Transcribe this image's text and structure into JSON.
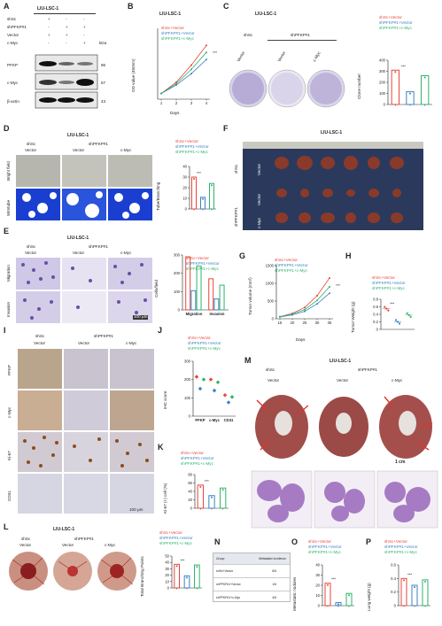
{
  "cell_line": "LIU-LSC-1",
  "panel_letters": [
    "A",
    "B",
    "C",
    "D",
    "E",
    "F",
    "G",
    "H",
    "I",
    "J",
    "K",
    "L",
    "M",
    "N",
    "O",
    "P"
  ],
  "groups": {
    "shsc": "shSc",
    "shpfkp": "shPFKP#1",
    "vector": "Vector",
    "cmyc": "c-Myc"
  },
  "legend": [
    "shSc+Vector",
    "shPFKP#1+Vector",
    "shPFKP#1+c-Myc"
  ],
  "colors": {
    "red": "#e8463a",
    "blue": "#3b82c4",
    "green": "#2fb36a"
  },
  "panelA": {
    "rows": [
      "shSc",
      "shPFKP#1",
      "Vector",
      "c-Myc"
    ],
    "signs": [
      [
        "+",
        "-",
        "-"
      ],
      [
        "-",
        "+",
        "+"
      ],
      [
        "+",
        "+",
        "-"
      ],
      [
        "-",
        "-",
        "+"
      ]
    ],
    "kda": "kDa",
    "bands": [
      {
        "name": "PFKP",
        "kda": "86"
      },
      {
        "name": "c-Myc",
        "kda": "57"
      },
      {
        "name": "β-actin",
        "kda": "43"
      }
    ]
  },
  "panelB": {
    "ylabel": "OD value (450nm)",
    "xlabel": "Days",
    "sig": "***"
  },
  "panelC": {
    "ylabel": "Clone number",
    "sig": "***"
  },
  "panelD": {
    "rows": [
      "Bright field",
      "Wimtube"
    ],
    "ylabel": "Tube/Branching",
    "sig": "***"
  },
  "panelE": {
    "rows": [
      "Migration",
      "Invasion"
    ],
    "ylabel": "Cells/field",
    "scale": "100 μm",
    "sig": "***"
  },
  "panelF": {
    "rows": [
      "shSc",
      "Vector",
      "shPFKP#1",
      "Vector",
      "c-Myc"
    ]
  },
  "panelG": {
    "ylabel": "Tumor volume (mm³)",
    "xlabel": "Days",
    "sig": "***"
  },
  "panelH": {
    "ylabel": "Tumor Weight (g)",
    "sig": "***"
  },
  "panelI": {
    "rows": [
      "PFKP",
      "c-Myc",
      "Ki-67",
      "CD31"
    ],
    "scale": "100 μm"
  },
  "panelJ": {
    "ylabel": "IHC score",
    "sig": "***"
  },
  "panelK": {
    "ylabel": "Ki-67 (+) cell (%)",
    "sig": "***"
  },
  "panelL": {
    "ylabel": "Total Branching Points",
    "sig": "***"
  },
  "panelM": {
    "scale": "1 cm"
  },
  "panelN": {
    "headers": [
      "Group",
      "Metastatic incidence"
    ],
    "rows": [
      [
        "shSc+Vector",
        "6/6"
      ],
      [
        "shPFKP#1+Vector",
        "1/6"
      ],
      [
        "shPFKP#1+c-Myc",
        "4/6"
      ]
    ]
  },
  "panelO": {
    "ylabel": "Metastatic nodules",
    "sig": "***"
  },
  "panelP": {
    "ylabel": "Lung weight (g)",
    "sig": "***"
  },
  "chart_data": [
    {
      "panel": "B",
      "type": "line",
      "x": [
        1,
        2,
        3,
        4
      ],
      "xlabel": "Days",
      "ylabel": "OD value (450nm)",
      "ylim": [
        0,
        2.5
      ],
      "series": [
        {
          "name": "shSc+Vector",
          "values": [
            0.2,
            0.6,
            1.2,
            1.9
          ]
        },
        {
          "name": "shPFKP#1+Vector",
          "values": [
            0.2,
            0.5,
            0.9,
            1.4
          ]
        },
        {
          "name": "shPFKP#1+c-Myc",
          "values": [
            0.2,
            0.55,
            1.05,
            1.65
          ]
        }
      ]
    },
    {
      "panel": "C",
      "type": "bar",
      "categories": [
        "shSc+Vector",
        "shPFKP#1+Vector",
        "shPFKP#1+c-Myc"
      ],
      "values": [
        310,
        115,
        260
      ],
      "ylabel": "Clone number",
      "ylim": [
        0,
        400
      ],
      "ticks": [
        0,
        100,
        200,
        300,
        400
      ]
    },
    {
      "panel": "D",
      "type": "bar",
      "categories": [
        "shSc+Vector",
        "shPFKP#1+Vector",
        "shPFKP#1+c-Myc"
      ],
      "values": [
        30,
        11,
        24
      ],
      "ylabel": "Tube/Branching",
      "ylim": [
        0,
        40
      ],
      "ticks": [
        0,
        10,
        20,
        30,
        40
      ]
    },
    {
      "panel": "E",
      "type": "bar",
      "categories": [
        "Migration",
        "Invasion"
      ],
      "ylabel": "Cells/field",
      "ylim": [
        0,
        300
      ],
      "ticks": [
        0,
        100,
        200,
        300
      ],
      "series": [
        {
          "name": "shSc+Vector",
          "values": [
            290,
            170
          ]
        },
        {
          "name": "shPFKP#1+Vector",
          "values": [
            105,
            60
          ]
        },
        {
          "name": "shPFKP#1+c-Myc",
          "values": [
            240,
            135
          ]
        }
      ]
    },
    {
      "panel": "G",
      "type": "line",
      "x": [
        15,
        20,
        25,
        30,
        35
      ],
      "xlabel": "Days",
      "ylabel": "Tumor volume (mm³)",
      "ylim": [
        0,
        1500
      ],
      "ticks": [
        0,
        500,
        1000,
        1500
      ],
      "series": [
        {
          "name": "shSc+Vector",
          "values": [
            60,
            150,
            320,
            650,
            1150
          ]
        },
        {
          "name": "shPFKP#1+Vector",
          "values": [
            50,
            110,
            210,
            420,
            720
          ]
        },
        {
          "name": "shPFKP#1+c-Myc",
          "values": [
            55,
            130,
            260,
            520,
            900
          ]
        }
      ]
    },
    {
      "panel": "H",
      "type": "scatter",
      "categories": [
        "shSc+Vector",
        "shPFKP#1+Vector",
        "shPFKP#1+c-Myc"
      ],
      "values": [
        0.55,
        0.2,
        0.38
      ],
      "ylabel": "Tumor Weight (g)",
      "ylim": [
        0,
        0.8
      ],
      "ticks": [
        0,
        0.2,
        0.4,
        0.6,
        0.8
      ]
    },
    {
      "panel": "J",
      "type": "scatter",
      "categories": [
        "PFKP",
        "c-Myc",
        "CD31"
      ],
      "ylabel": "IHC score",
      "ylim": [
        0,
        300
      ],
      "ticks": [
        0,
        100,
        200,
        300
      ],
      "series": [
        {
          "name": "shSc+Vector",
          "values": [
            215,
            200,
            115
          ]
        },
        {
          "name": "shPFKP#1+Vector",
          "values": [
            150,
            140,
            75
          ]
        },
        {
          "name": "shPFKP#1+c-Myc",
          "values": [
            200,
            185,
            105
          ]
        }
      ]
    },
    {
      "panel": "K",
      "type": "bar",
      "categories": [
        "shSc+Vector",
        "shPFKP#1+Vector",
        "shPFKP#1+c-Myc"
      ],
      "values": [
        55,
        30,
        48
      ],
      "ylabel": "Ki-67 (+) cell (%)",
      "ylim": [
        0,
        80
      ],
      "ticks": [
        0,
        20,
        40,
        60,
        80
      ]
    },
    {
      "panel": "L",
      "type": "bar",
      "categories": [
        "shSc+Vector",
        "shPFKP#1+Vector",
        "shPFKP#1+c-Myc"
      ],
      "values": [
        37,
        19,
        36
      ],
      "ylabel": "Total Branching Points",
      "ylim": [
        0,
        50
      ],
      "ticks": [
        0,
        10,
        20,
        30,
        40,
        50
      ]
    },
    {
      "panel": "O",
      "type": "bar",
      "categories": [
        "shSc+Vector",
        "shPFKP#1+Vector",
        "shPFKP#1+c-Myc"
      ],
      "values": [
        22,
        3,
        12
      ],
      "ylabel": "Metastatic nodules",
      "ylim": [
        0,
        40
      ],
      "ticks": [
        0,
        10,
        20,
        30,
        40
      ]
    },
    {
      "panel": "P",
      "type": "bar",
      "categories": [
        "shSc+Vector",
        "shPFKP#1+Vector",
        "shPFKP#1+c-Myc"
      ],
      "values": [
        0.4,
        0.3,
        0.38
      ],
      "ylabel": "Lung weight (g)",
      "ylim": [
        0,
        0.6
      ],
      "ticks": [
        0,
        0.2,
        0.4,
        0.6
      ]
    }
  ]
}
